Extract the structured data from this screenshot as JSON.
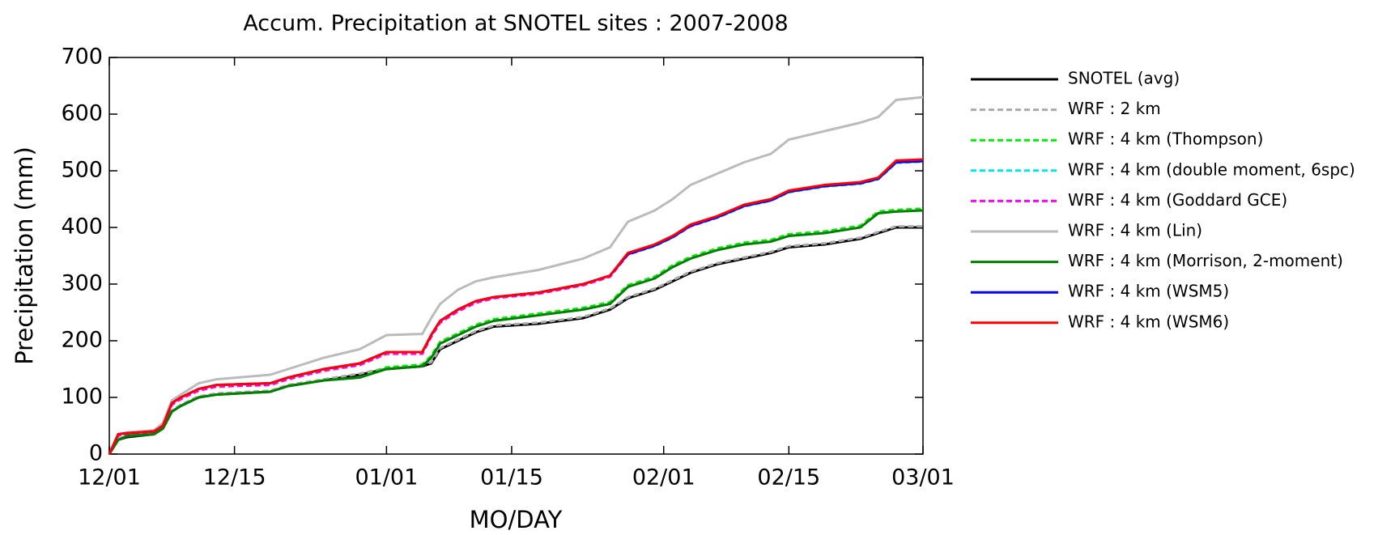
{
  "chart_data": {
    "type": "line",
    "title": "Accum. Precipitation at SNOTEL sites : 2007-2008",
    "x_label": "MO/DAY",
    "y_label": "Precipitation (mm)",
    "x": [
      0,
      1,
      2,
      5,
      6,
      7,
      8,
      10,
      12,
      18,
      20,
      24,
      28,
      31,
      35,
      36,
      37,
      39,
      41,
      43,
      48,
      53,
      56,
      58,
      61,
      63,
      65,
      68,
      71,
      74,
      76,
      80,
      84,
      86,
      88,
      91
    ],
    "xlim": [
      0,
      91
    ],
    "xticks": [
      {
        "value": 0,
        "label": "12/01"
      },
      {
        "value": 14,
        "label": "12/15"
      },
      {
        "value": 31,
        "label": "01/01"
      },
      {
        "value": 45,
        "label": "01/15"
      },
      {
        "value": 62,
        "label": "02/01"
      },
      {
        "value": 76,
        "label": "02/15"
      },
      {
        "value": 91,
        "label": "03/01"
      }
    ],
    "ylim": [
      0,
      700
    ],
    "yticks": [
      0,
      100,
      200,
      300,
      400,
      500,
      600,
      700
    ],
    "legend": "right",
    "series": [
      {
        "name": "SNOTEL (avg)",
        "color": "#000000",
        "dash": false,
        "values": [
          0,
          25,
          30,
          35,
          45,
          75,
          85,
          100,
          105,
          110,
          120,
          130,
          140,
          150,
          155,
          160,
          185,
          200,
          215,
          225,
          230,
          240,
          255,
          275,
          290,
          305,
          320,
          335,
          345,
          355,
          365,
          370,
          380,
          390,
          400,
          400
        ]
      },
      {
        "name": "WRF : 2 km",
        "color": "#aaaaaa",
        "dash": true,
        "values": [
          0,
          27,
          32,
          37,
          47,
          77,
          87,
          102,
          107,
          112,
          122,
          132,
          142,
          152,
          157,
          162,
          187,
          202,
          217,
          227,
          232,
          242,
          257,
          277,
          292,
          307,
          322,
          337,
          347,
          357,
          367,
          372,
          382,
          392,
          402,
          402
        ]
      },
      {
        "name": "WRF : 4 km (Thompson)",
        "color": "#00ee00",
        "dash": true,
        "values": [
          0,
          25,
          32,
          35,
          45,
          75,
          85,
          100,
          105,
          110,
          120,
          130,
          135,
          153,
          158,
          173,
          198,
          213,
          228,
          238,
          248,
          258,
          268,
          298,
          313,
          333,
          348,
          363,
          373,
          378,
          388,
          393,
          403,
          428,
          431,
          433
        ]
      },
      {
        "name": "WRF : 4 km (double moment, 6spc)",
        "color": "#00e5ee",
        "dash": true,
        "values": [
          0,
          35,
          37,
          40,
          50,
          90,
          100,
          115,
          122,
          125,
          135,
          150,
          160,
          180,
          180,
          210,
          235,
          255,
          270,
          277,
          285,
          300,
          315,
          352,
          367,
          382,
          402,
          417,
          437,
          447,
          462,
          472,
          477,
          485,
          514,
          516
        ]
      },
      {
        "name": "WRF : 4 km (Goddard GCE)",
        "color": "#ff00ff",
        "dash": true,
        "values": [
          0,
          33,
          35,
          38,
          48,
          87,
          97,
          112,
          119,
          122,
          132,
          147,
          157,
          177,
          177,
          207,
          232,
          252,
          267,
          275,
          283,
          298,
          313,
          352,
          368,
          383,
          402,
          418,
          438,
          448,
          463,
          473,
          478,
          486,
          516,
          518
        ]
      },
      {
        "name": "WRF : 4 km (Lin)",
        "color": "#bbbbbb",
        "dash": false,
        "values": [
          0,
          35,
          38,
          42,
          55,
          95,
          105,
          125,
          132,
          140,
          150,
          170,
          185,
          210,
          212,
          240,
          265,
          290,
          305,
          312,
          325,
          345,
          365,
          410,
          430,
          450,
          475,
          495,
          515,
          530,
          555,
          570,
          585,
          595,
          625,
          630
        ]
      },
      {
        "name": "WRF : 4 km (Morrison, 2-moment)",
        "color": "#008000",
        "dash": false,
        "values": [
          0,
          25,
          32,
          35,
          45,
          75,
          85,
          100,
          105,
          110,
          120,
          130,
          135,
          150,
          155,
          170,
          195,
          210,
          225,
          235,
          245,
          255,
          265,
          295,
          310,
          330,
          345,
          360,
          370,
          375,
          385,
          390,
          400,
          425,
          428,
          430
        ]
      },
      {
        "name": "WRF : 4 km (WSM5)",
        "color": "#0000ff",
        "dash": false,
        "values": [
          0,
          35,
          37,
          40,
          50,
          90,
          100,
          115,
          122,
          125,
          135,
          150,
          160,
          180,
          180,
          210,
          235,
          255,
          270,
          277,
          285,
          300,
          315,
          353,
          368,
          383,
          403,
          418,
          438,
          448,
          463,
          473,
          478,
          486,
          515,
          517
        ]
      },
      {
        "name": "WRF : 4 km (WSM6)",
        "color": "#ff0000",
        "dash": false,
        "values": [
          0,
          35,
          37,
          40,
          50,
          90,
          100,
          115,
          122,
          125,
          135,
          150,
          160,
          180,
          180,
          210,
          235,
          255,
          270,
          277,
          285,
          300,
          315,
          355,
          370,
          385,
          405,
          420,
          440,
          450,
          465,
          475,
          480,
          488,
          518,
          520
        ]
      }
    ]
  }
}
